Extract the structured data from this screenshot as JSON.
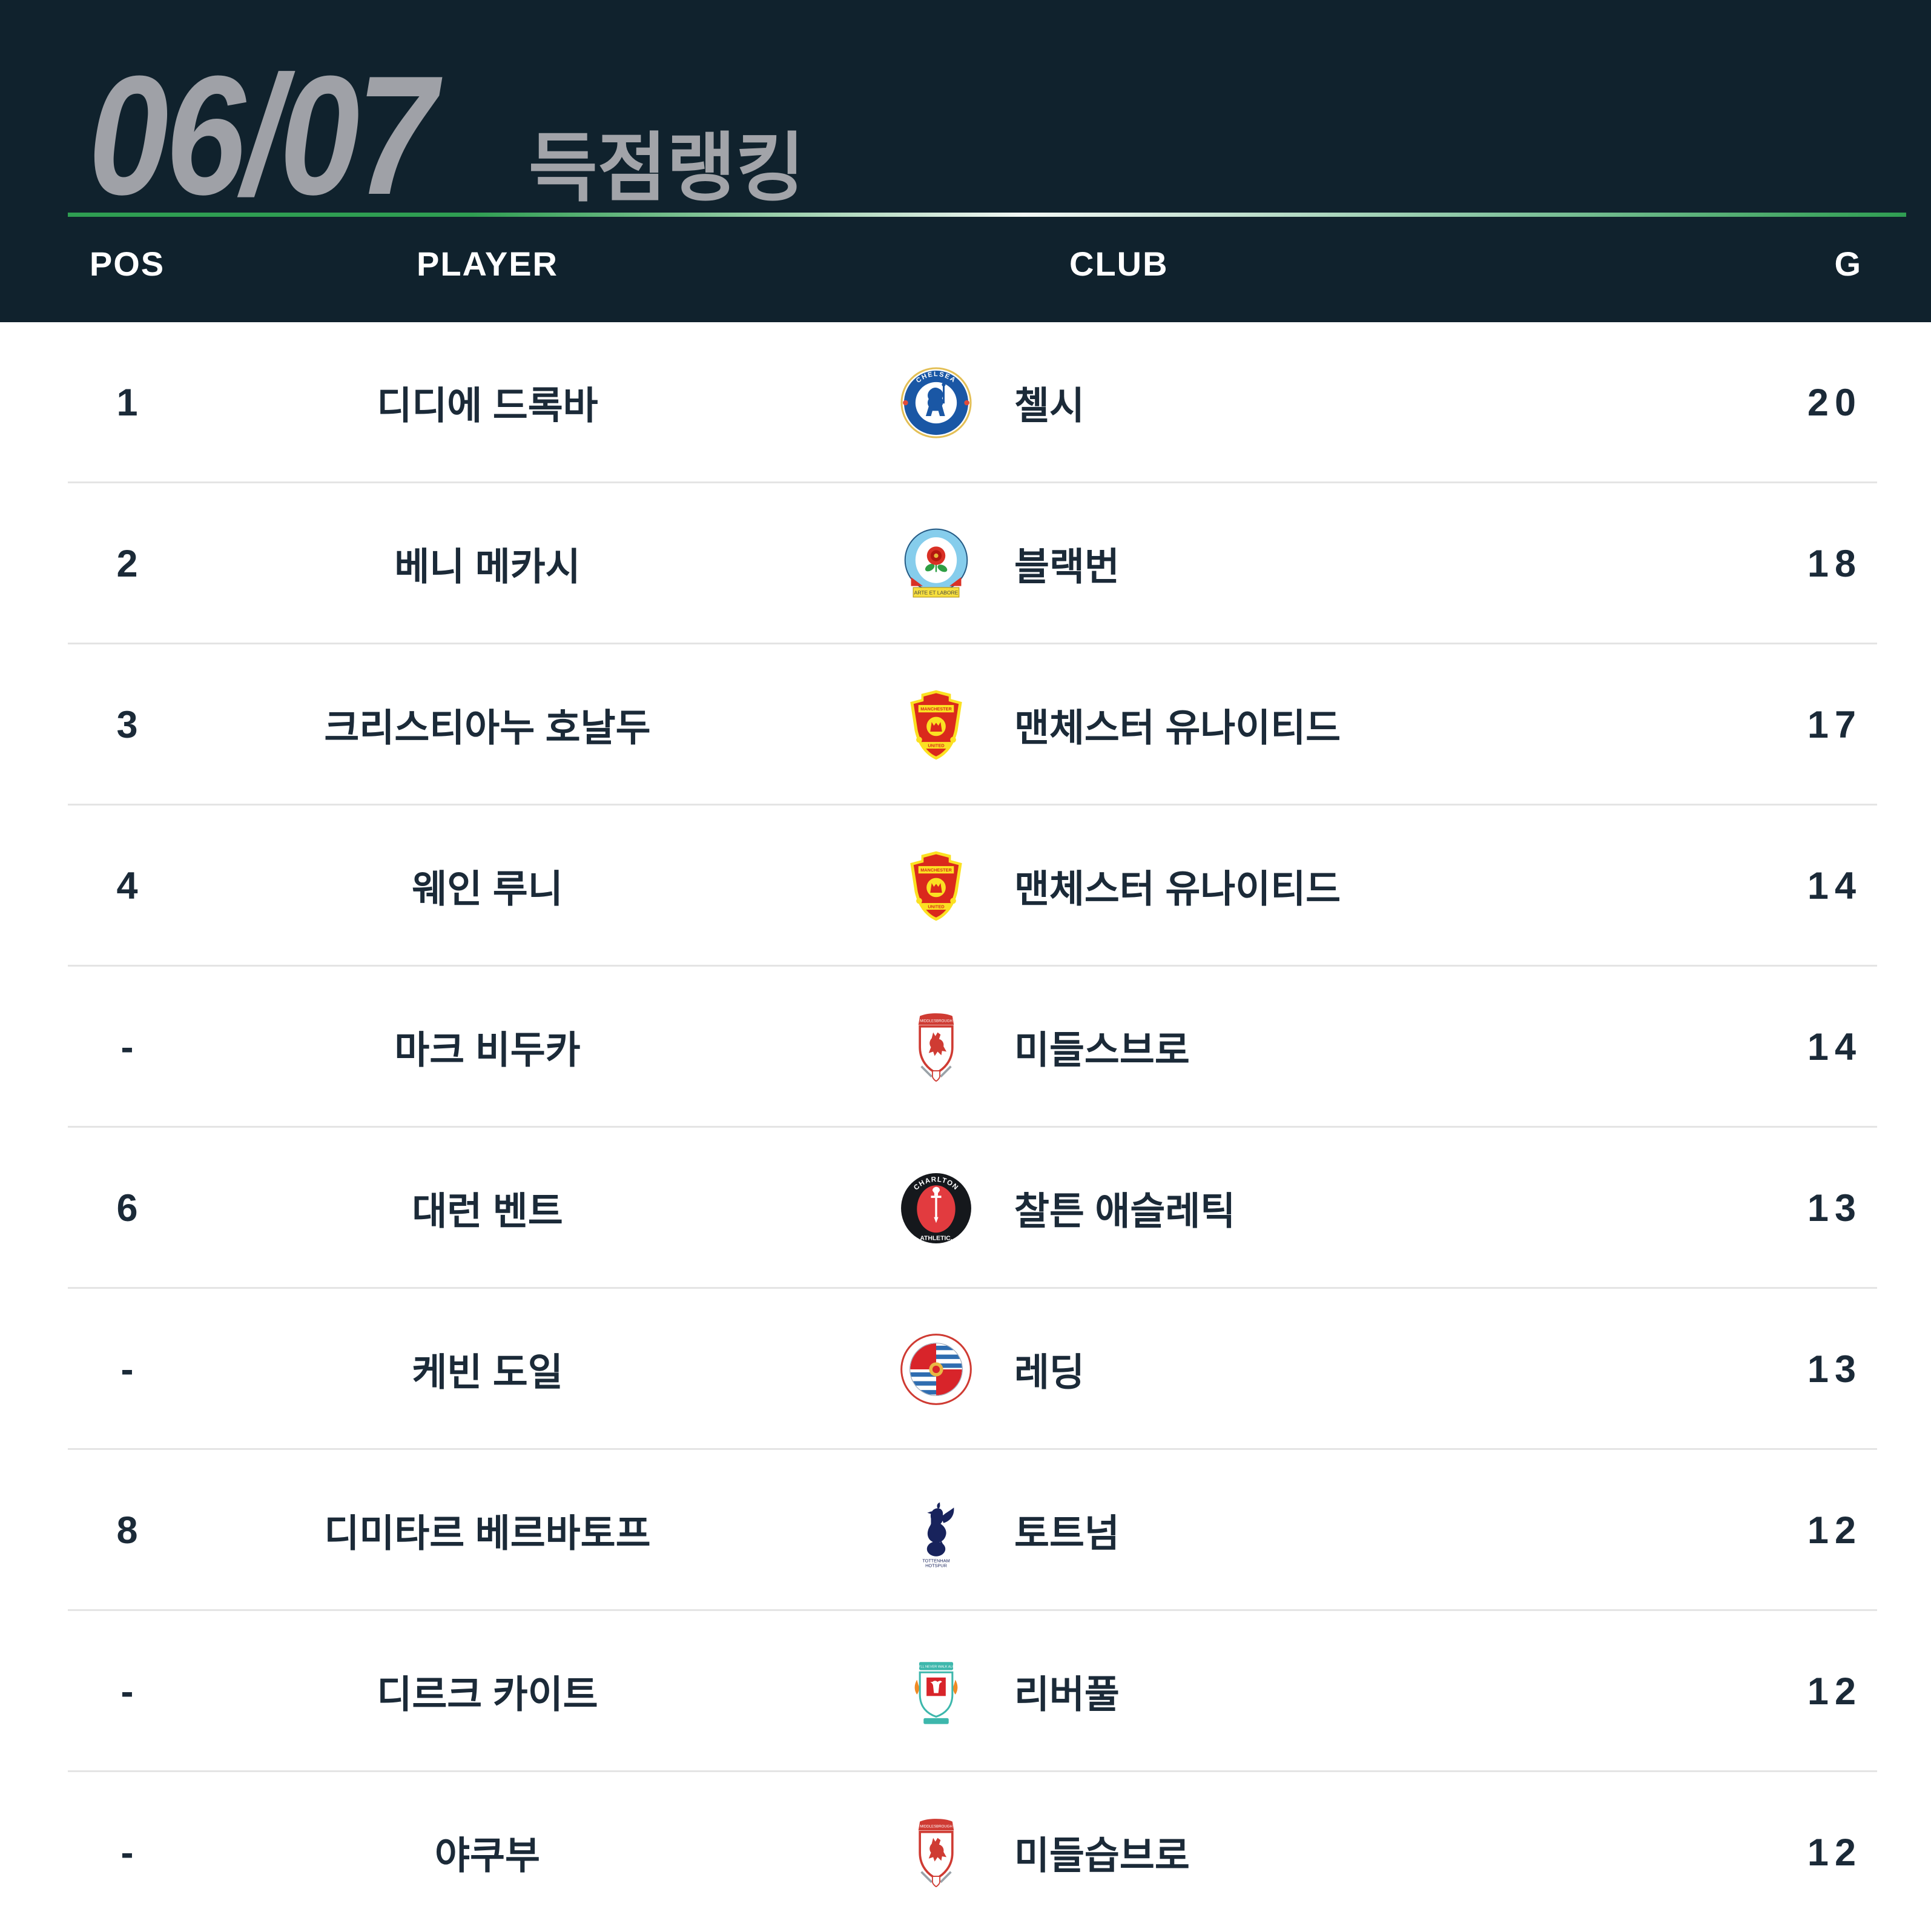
{
  "header": {
    "season": "06/07",
    "subtitle": "득점랭킹"
  },
  "columns": {
    "pos": "POS",
    "player": "PLAYER",
    "club": "CLUB",
    "goals": "G"
  },
  "table": {
    "rows": [
      {
        "pos": "1",
        "player": "디디에 드록바",
        "club": "첼시",
        "goals": "20",
        "crest": "chelsea"
      },
      {
        "pos": "2",
        "player": "베니 메카시",
        "club": "블랙번",
        "goals": "18",
        "crest": "blackburn"
      },
      {
        "pos": "3",
        "player": "크리스티아누 호날두",
        "club": "맨체스터 유나이티드",
        "goals": "17",
        "crest": "man-united"
      },
      {
        "pos": "4",
        "player": "웨인 루니",
        "club": "맨체스터 유나이티드",
        "goals": "14",
        "crest": "man-united"
      },
      {
        "pos": "-",
        "player": "마크 비두카",
        "club": "미들스브로",
        "goals": "14",
        "crest": "middlesbrough"
      },
      {
        "pos": "6",
        "player": "대런 벤트",
        "club": "찰튼 애슬레틱",
        "goals": "13",
        "crest": "charlton"
      },
      {
        "pos": "-",
        "player": "케빈 도일",
        "club": "레딩",
        "goals": "13",
        "crest": "reading"
      },
      {
        "pos": "8",
        "player": "디미타르 베르바토프",
        "club": "토트넘",
        "goals": "12",
        "crest": "tottenham"
      },
      {
        "pos": "-",
        "player": "디르크 카이트",
        "club": "리버풀",
        "goals": "12",
        "crest": "liverpool"
      },
      {
        "pos": "-",
        "player": "야쿠부",
        "club": "미들습브로",
        "goals": "12",
        "crest": "middlesbrough"
      }
    ]
  },
  "crest_icons": {
    "chelsea": "chelsea-crest-icon",
    "blackburn": "blackburn-crest-icon",
    "man-united": "man-united-crest-icon",
    "middlesbrough": "middlesbrough-crest-icon",
    "charlton": "charlton-crest-icon",
    "reading": "reading-crest-icon",
    "tottenham": "tottenham-crest-icon",
    "liverpool": "liverpool-crest-icon"
  },
  "crest_texts": {
    "chelsea": "CHELSEA",
    "blackburn": "ARTE ET LABORE",
    "man_united_top": "MANCHESTER",
    "man_united_bottom": "UNITED",
    "middlesbrough": "MIDDLESBROUGH",
    "charlton_top": "CHARLTON",
    "charlton_bottom": "ATHLETIC.",
    "tottenham_line1": "TOTTENHAM",
    "tottenham_line2": "HOTSPUR",
    "liverpool": "YOU'LL NEVER WALK ALONE"
  },
  "colors": {
    "header_bg": "#10222d",
    "header_text": "#ffffff",
    "title_gray": "#9fa1a7",
    "subtitle_gray": "#a2a4a9",
    "row_text": "#1b2a38",
    "divider": "#e4e4e4",
    "accent_green": "#2f9e52",
    "page_bg": "#ffffff"
  },
  "chart_data": {
    "type": "table",
    "title": "06/07 득점랭킹",
    "columns": [
      "POS",
      "PLAYER",
      "CLUB",
      "G"
    ],
    "rows": [
      [
        "1",
        "디디에 드록바",
        "첼시",
        20
      ],
      [
        "2",
        "베니 메카시",
        "블랙번",
        18
      ],
      [
        "3",
        "크리스티아누 호날두",
        "맨체스터 유나이티드",
        17
      ],
      [
        "4",
        "웨인 루니",
        "맨체스터 유나이티드",
        14
      ],
      [
        "-",
        "마크 비두카",
        "미들스브로",
        14
      ],
      [
        "6",
        "대런 벤트",
        "찰튼 애슬레틱",
        13
      ],
      [
        "-",
        "케빈 도일",
        "레딩",
        13
      ],
      [
        "8",
        "디미타르 베르바토프",
        "토트넘",
        12
      ],
      [
        "-",
        "디르크 카이트",
        "리버풀",
        12
      ],
      [
        "-",
        "야쿠부",
        "미들습브로",
        12
      ]
    ]
  }
}
